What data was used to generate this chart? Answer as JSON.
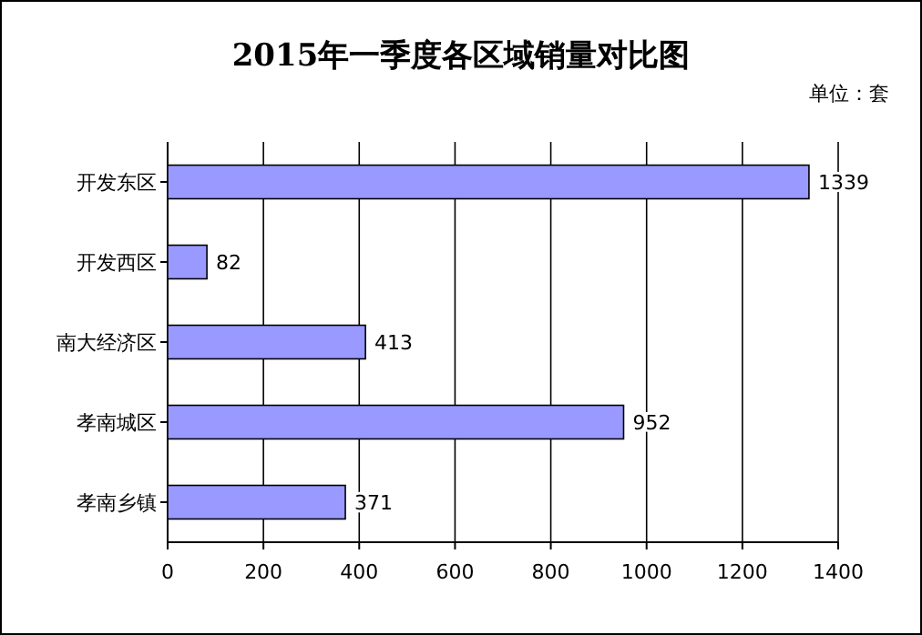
{
  "chart_data": {
    "type": "bar",
    "orientation": "horizontal",
    "title": "2015年一季度各区域销量对比图",
    "annotations": [
      "单位：套"
    ],
    "categories": [
      "开发东区",
      "开发西区",
      "南大经济区",
      "孝南城区",
      "孝南乡镇"
    ],
    "values": [
      1339,
      82,
      413,
      952,
      371
    ],
    "color": "#9999ff",
    "xlim": [
      0,
      1400
    ],
    "xticks": [
      0,
      200,
      400,
      600,
      800,
      1000,
      1200,
      1400
    ],
    "grid": "x",
    "data_labels": true
  }
}
